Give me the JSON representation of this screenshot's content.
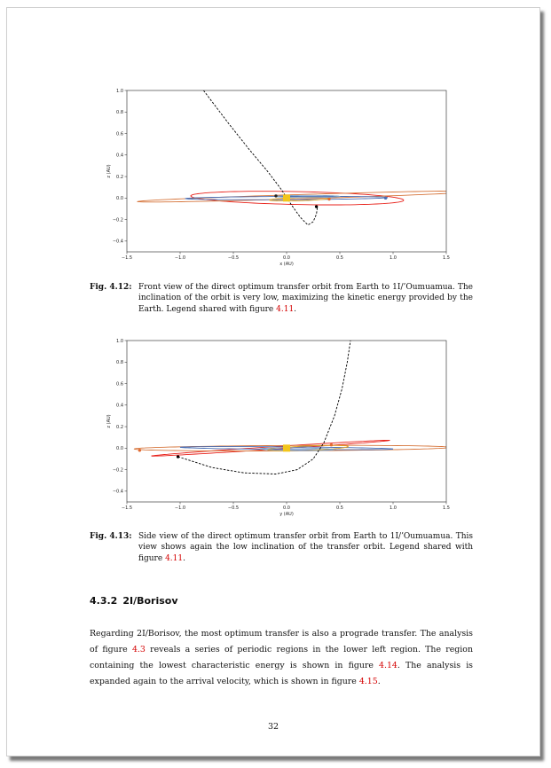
{
  "chart_data": [
    {
      "type": "line",
      "title": "",
      "xlabel": "x (AU)",
      "ylabel": "z (AU)",
      "xlim": [
        -1.5,
        1.5
      ],
      "ylim": [
        -0.5,
        1.0
      ],
      "xticks": [
        "−1.5",
        "−1.0",
        "−0.5",
        "0.0",
        "0.5",
        "1.0",
        "1.5"
      ],
      "yticks": [
        "−0.4",
        "−0.2",
        "0.0",
        "0.2",
        "0.4",
        "0.6",
        "0.8",
        "1.0"
      ],
      "grid": false,
      "series": [
        {
          "kind": "dashed-transfer",
          "color": "#000000",
          "x": [
            -0.78,
            -0.55,
            -0.35,
            -0.18,
            -0.05,
            0.05,
            0.13,
            0.2,
            0.25,
            0.28,
            0.29
          ],
          "y": [
            1.0,
            0.7,
            0.45,
            0.25,
            0.08,
            -0.07,
            -0.18,
            -0.25,
            -0.22,
            -0.15,
            -0.08
          ]
        },
        {
          "kind": "orbit",
          "color": "#e8231c",
          "cx": 0.1,
          "cy": 0.0,
          "rx": 1.0,
          "ry": 0.06,
          "tilt": -0.02
        },
        {
          "kind": "orbit",
          "color": "#d6743a",
          "cx": 0.2,
          "cy": 0.015,
          "rx": 1.6,
          "ry": 0.02,
          "tilt": 0.03
        },
        {
          "kind": "orbit",
          "color": "#4a6fb5",
          "cx": 0.0,
          "cy": 0.0,
          "rx": 0.95,
          "ry": 0.015,
          "tilt": 0.005
        },
        {
          "kind": "orbit",
          "color": "#e0a020",
          "cx": 0.12,
          "cy": -0.01,
          "rx": 0.28,
          "ry": 0.015,
          "tilt": 0.03
        },
        {
          "kind": "orbit",
          "color": "#7aa0c8",
          "cx": 0.2,
          "cy": 0.015,
          "rx": 0.3,
          "ry": 0.01,
          "tilt": 0.0
        }
      ],
      "points": [
        {
          "x": 0.0,
          "y": 0.0,
          "color": "#f2c51c",
          "kind": "sun"
        },
        {
          "x": 0.28,
          "y": -0.08,
          "color": "#000000"
        },
        {
          "x": -0.1,
          "y": 0.02,
          "color": "#222222"
        },
        {
          "x": 0.4,
          "y": -0.01,
          "color": "#e06a30"
        },
        {
          "x": 0.93,
          "y": 0.0,
          "color": "#4a6fb5"
        }
      ]
    },
    {
      "type": "line",
      "title": "",
      "xlabel": "y (AU)",
      "ylabel": "z (AU)",
      "xlim": [
        -1.5,
        1.5
      ],
      "ylim": [
        -0.5,
        1.0
      ],
      "xticks": [
        "−1.5",
        "−1.0",
        "−0.5",
        "0.0",
        "0.5",
        "1.0",
        "1.5"
      ],
      "yticks": [
        "−0.4",
        "−0.2",
        "0.0",
        "0.2",
        "0.4",
        "0.6",
        "0.8",
        "1.0"
      ],
      "grid": false,
      "series": [
        {
          "kind": "dashed-transfer",
          "color": "#000000",
          "x": [
            -1.02,
            -0.7,
            -0.4,
            -0.1,
            0.1,
            0.25,
            0.35,
            0.45,
            0.52,
            0.57,
            0.6
          ],
          "y": [
            -0.08,
            -0.18,
            -0.23,
            -0.24,
            -0.2,
            -0.1,
            0.05,
            0.3,
            0.55,
            0.8,
            1.0
          ]
        },
        {
          "kind": "orbit",
          "color": "#e8231c",
          "cx": -0.15,
          "cy": 0.0,
          "rx": 1.12,
          "ry": 0.012,
          "tilt": 0.065
        },
        {
          "kind": "orbit",
          "color": "#d6743a",
          "cx": 0.05,
          "cy": 0.0,
          "rx": 1.48,
          "ry": 0.025,
          "tilt": 0.005
        },
        {
          "kind": "orbit",
          "color": "#4a6fb5",
          "cx": 0.0,
          "cy": 0.0,
          "rx": 1.0,
          "ry": 0.012,
          "tilt": -0.008
        },
        {
          "kind": "orbit",
          "color": "#e0a020",
          "cx": 0.2,
          "cy": 0.0,
          "rx": 0.38,
          "ry": 0.02,
          "tilt": 0.04
        },
        {
          "kind": "orbit",
          "color": "#7aa0c8",
          "cx": 0.1,
          "cy": -0.01,
          "rx": 0.35,
          "ry": 0.012,
          "tilt": -0.01
        }
      ],
      "points": [
        {
          "x": 0.0,
          "y": 0.0,
          "color": "#f2c51c",
          "kind": "sun"
        },
        {
          "x": -1.02,
          "y": -0.08,
          "color": "#000000"
        },
        {
          "x": -1.38,
          "y": -0.02,
          "color": "#e06a30"
        },
        {
          "x": 0.42,
          "y": 0.03,
          "color": "#e06a30"
        }
      ]
    }
  ],
  "figures": [
    {
      "label": "Fig. 4.12:",
      "caption_before": "Front view of the direct optimum transfer orbit from Earth to 1I/’Oumuamua. The inclination of the orbit is very low, maximizing the kinetic energy provided by the Earth. Legend shared with figure ",
      "caption_ref": "4.11",
      "caption_after": "."
    },
    {
      "label": "Fig. 4.13:",
      "caption_before": "Side view of the direct optimum transfer orbit from Earth to 1I/’Oumuamua. This view shows again the low inclination of the transfer orbit. Legend shared with figure ",
      "caption_ref": "4.11",
      "caption_after": "."
    }
  ],
  "section": {
    "number": "4.3.2",
    "title": "2I/Borisov"
  },
  "paragraph": {
    "t1": "Regarding 2I/Borisov, the most optimum transfer is also a prograde transfer. The analysis of figure ",
    "r1": "4.3",
    "t2": " reveals a series of periodic regions in the lower left region. The region containing the lowest characteristic energy is shown in figure ",
    "r2": "4.14",
    "t3": ". The analysis is expanded again to the arrival velocity, which is shown in figure ",
    "r3": "4.15",
    "t4": "."
  },
  "page_number": "32"
}
